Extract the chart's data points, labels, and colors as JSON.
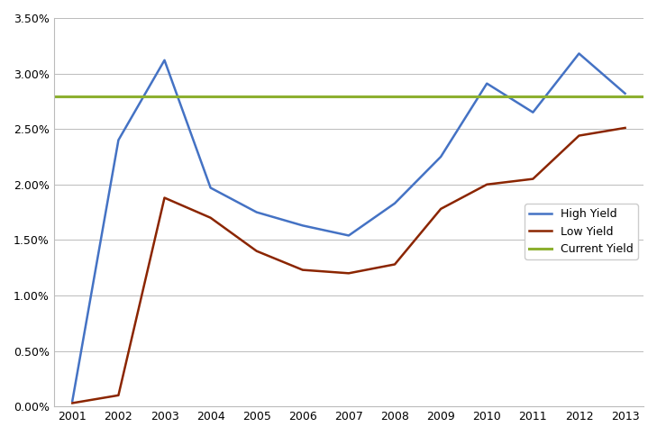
{
  "years": [
    2001,
    2002,
    2003,
    2004,
    2005,
    2006,
    2007,
    2008,
    2009,
    2010,
    2011,
    2012,
    2013
  ],
  "high_yield": [
    0.0005,
    0.024,
    0.0312,
    0.0197,
    0.0175,
    0.0163,
    0.0154,
    0.0183,
    0.0225,
    0.0291,
    0.0265,
    0.0318,
    0.0282
  ],
  "low_yield": [
    0.0003,
    0.001,
    0.0188,
    0.017,
    0.014,
    0.0123,
    0.012,
    0.0128,
    0.0178,
    0.02,
    0.0205,
    0.0244,
    0.0251
  ],
  "current_yield": 0.0279,
  "high_yield_color": "#4472C4",
  "low_yield_color": "#8B2500",
  "current_yield_color": "#8DB030",
  "background_color": "#FFFFFF",
  "grid_color": "#BBBBBB",
  "ylim": [
    0.0,
    0.035
  ],
  "yticks": [
    0.0,
    0.005,
    0.01,
    0.015,
    0.02,
    0.025,
    0.03,
    0.035
  ],
  "legend_labels": [
    "High Yield",
    "Low Yield",
    "Current Yield"
  ]
}
